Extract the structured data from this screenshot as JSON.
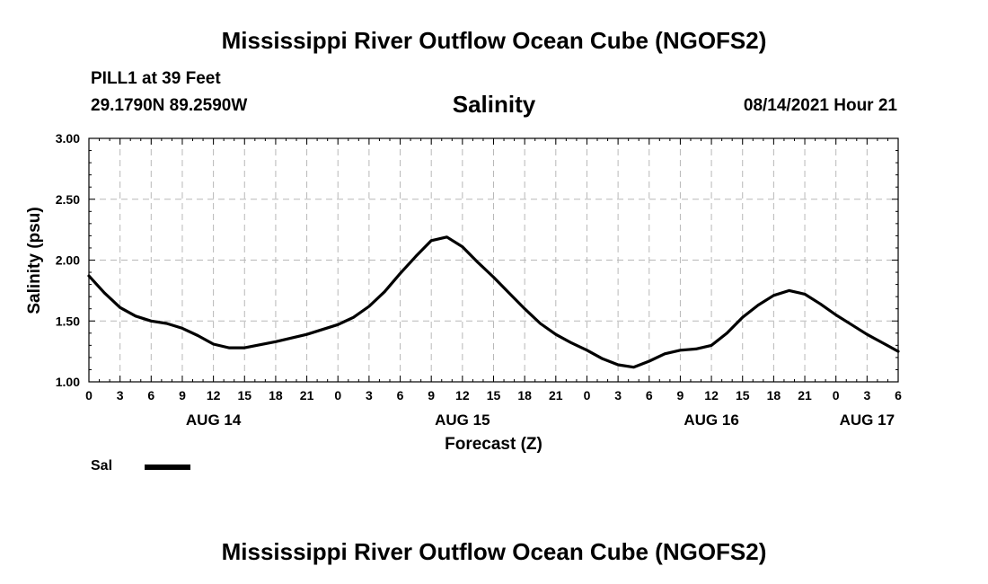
{
  "header": {
    "title": "Mississippi River Outflow Ocean Cube (NGOFS2)",
    "station": "PILL1 at 39 Feet",
    "coordinates": "29.1790N  89.2590W",
    "variable": "Salinity",
    "datetime": "08/14/2021 Hour 21"
  },
  "footer": {
    "title": "Mississippi River Outflow Ocean Cube (NGOFS2)"
  },
  "legend": {
    "label": "Sal",
    "color": "#000000"
  },
  "chart_data": {
    "type": "line",
    "title": "Salinity",
    "xlabel": "Forecast (Z)",
    "ylabel": "Salinity (psu)",
    "ylim": [
      1.0,
      3.0
    ],
    "xlim": [
      0,
      78
    ],
    "grid": true,
    "y_ticks": [
      "1.00",
      "1.50",
      "2.00",
      "2.50",
      "3.00"
    ],
    "y_tick_values": [
      1.0,
      1.5,
      2.0,
      2.5,
      3.0
    ],
    "x_tick_labels": [
      "0",
      "3",
      "6",
      "9",
      "12",
      "15",
      "18",
      "21",
      "0",
      "3",
      "6",
      "9",
      "12",
      "15",
      "18",
      "21",
      "0",
      "3",
      "6",
      "9",
      "12",
      "15",
      "18",
      "21",
      "0",
      "3",
      "6"
    ],
    "day_labels": [
      {
        "label": "AUG 14",
        "hour": 12
      },
      {
        "label": "AUG 15",
        "hour": 36
      },
      {
        "label": "AUG 16",
        "hour": 60
      },
      {
        "label": "AUG 17",
        "hour": 75
      }
    ],
    "series": [
      {
        "name": "Sal",
        "x": [
          0,
          1.5,
          3,
          4.5,
          6,
          7.5,
          9,
          10.5,
          12,
          13.5,
          15,
          18,
          21,
          24,
          25.5,
          27,
          28.5,
          30,
          31.5,
          33,
          34.5,
          36,
          37.5,
          39,
          40.5,
          42,
          43.5,
          45,
          46.5,
          48,
          49.5,
          51,
          52.5,
          54,
          55.5,
          57,
          58.5,
          60,
          61.5,
          63,
          64.5,
          66,
          67.5,
          69,
          70.5,
          72,
          73.5,
          75,
          76.5,
          78
        ],
        "values": [
          1.87,
          1.73,
          1.61,
          1.54,
          1.5,
          1.48,
          1.44,
          1.38,
          1.31,
          1.28,
          1.28,
          1.33,
          1.39,
          1.47,
          1.53,
          1.62,
          1.74,
          1.89,
          2.03,
          2.16,
          2.19,
          2.11,
          1.98,
          1.86,
          1.73,
          1.6,
          1.48,
          1.39,
          1.32,
          1.26,
          1.19,
          1.14,
          1.12,
          1.17,
          1.23,
          1.26,
          1.27,
          1.3,
          1.4,
          1.53,
          1.63,
          1.71,
          1.75,
          1.72,
          1.64,
          1.55,
          1.47,
          1.39,
          1.32,
          1.25
        ]
      }
    ]
  }
}
